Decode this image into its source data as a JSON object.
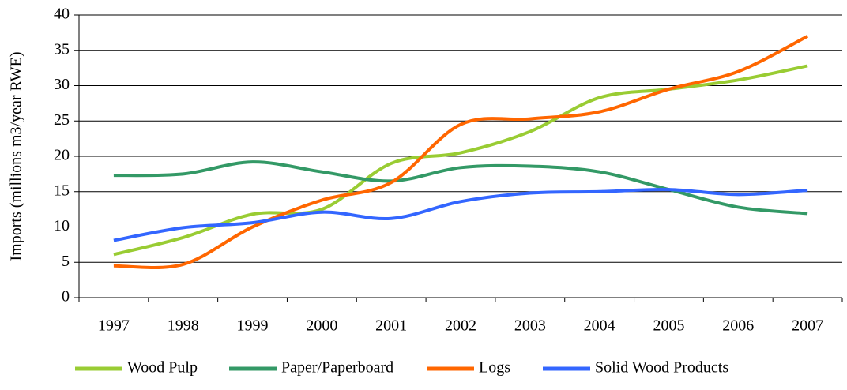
{
  "chart_data": {
    "type": "line",
    "y_label": "Imports (millions m3/year RWE)",
    "categories": [
      "1997",
      "1998",
      "1999",
      "2000",
      "2001",
      "2002",
      "2003",
      "2004",
      "2005",
      "2006",
      "2007"
    ],
    "series": [
      {
        "name": "Wood Pulp",
        "color": "#99cc33",
        "values": [
          6.1,
          8.5,
          11.8,
          12.5,
          19,
          20.5,
          23.5,
          28.3,
          29.5,
          30.8,
          32.8
        ]
      },
      {
        "name": "Paper/Paperboard",
        "color": "#339966",
        "values": [
          17.3,
          17.5,
          19.2,
          17.8,
          16.5,
          18.4,
          18.6,
          17.8,
          15.3,
          12.8,
          11.9
        ]
      },
      {
        "name": "Logs",
        "color": "#ff6600",
        "values": [
          4.5,
          4.7,
          10,
          13.8,
          16.3,
          24.5,
          25.3,
          26.3,
          29.5,
          32,
          37
        ]
      },
      {
        "name": "Solid Wood Products",
        "color": "#3366ff",
        "values": [
          8.1,
          9.9,
          10.6,
          12.1,
          11.2,
          13.6,
          14.8,
          15,
          15.3,
          14.6,
          15.2
        ]
      }
    ],
    "ylim": [
      0,
      40
    ],
    "yticks": [
      0,
      5,
      10,
      15,
      20,
      25,
      30,
      35,
      40
    ],
    "grid": true,
    "legend": "bottom"
  }
}
